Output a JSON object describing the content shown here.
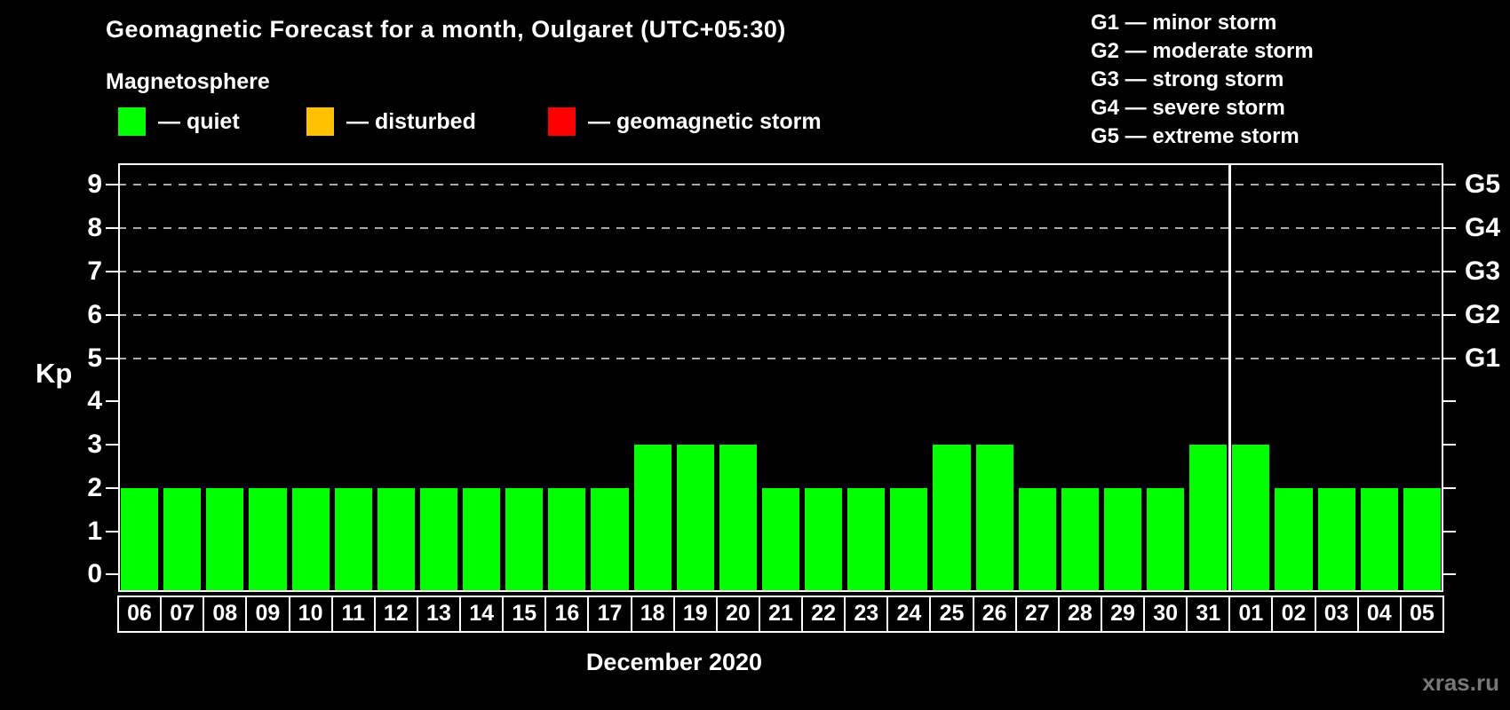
{
  "legend": {
    "heading": "Magnetosphere",
    "items": [
      {
        "name": "quiet",
        "label": "— quiet",
        "color": "#00ff00"
      },
      {
        "name": "disturbed",
        "label": "— disturbed",
        "color": "#ffc000"
      },
      {
        "name": "geomagnetic-storm",
        "label": "— geomagnetic storm",
        "color": "#ff0000"
      }
    ]
  },
  "storm_legend": {
    "items": [
      "G1 — minor storm",
      "G2 — moderate storm",
      "G3 — strong storm",
      "G4 — severe storm",
      "G5 — extreme storm"
    ]
  },
  "watermark": "xras.ru",
  "chart_data": {
    "type": "bar",
    "title": "Geomagnetic Forecast for a month, Oulgaret (UTC+05:30)",
    "xlabel": "December 2020",
    "ylabel": "Kp",
    "ylim": [
      -0.4,
      9.5
    ],
    "yticks": [
      0,
      1,
      2,
      3,
      4,
      5,
      6,
      7,
      8,
      9
    ],
    "gridlines": [
      5,
      6,
      7,
      8,
      9
    ],
    "right_axis": [
      {
        "label": "G1",
        "value": 5
      },
      {
        "label": "G2",
        "value": 6
      },
      {
        "label": "G3",
        "value": 7
      },
      {
        "label": "G4",
        "value": 8
      },
      {
        "label": "G5",
        "value": 9
      }
    ],
    "categories": [
      "06",
      "07",
      "08",
      "09",
      "10",
      "11",
      "12",
      "13",
      "14",
      "15",
      "16",
      "17",
      "18",
      "19",
      "20",
      "21",
      "22",
      "23",
      "24",
      "25",
      "26",
      "27",
      "28",
      "29",
      "30",
      "31",
      "01",
      "02",
      "03",
      "04",
      "05"
    ],
    "values": [
      2,
      2,
      2,
      2,
      2,
      2,
      2,
      2,
      2,
      2,
      2,
      2,
      3,
      3,
      3,
      2,
      2,
      2,
      2,
      3,
      3,
      2,
      2,
      2,
      2,
      3,
      3,
      2,
      2,
      2,
      2
    ],
    "bar_color": "#00ff00",
    "grid_color": "#aaaaaa",
    "month_separator_after_index": 25,
    "legend_position": "top"
  }
}
